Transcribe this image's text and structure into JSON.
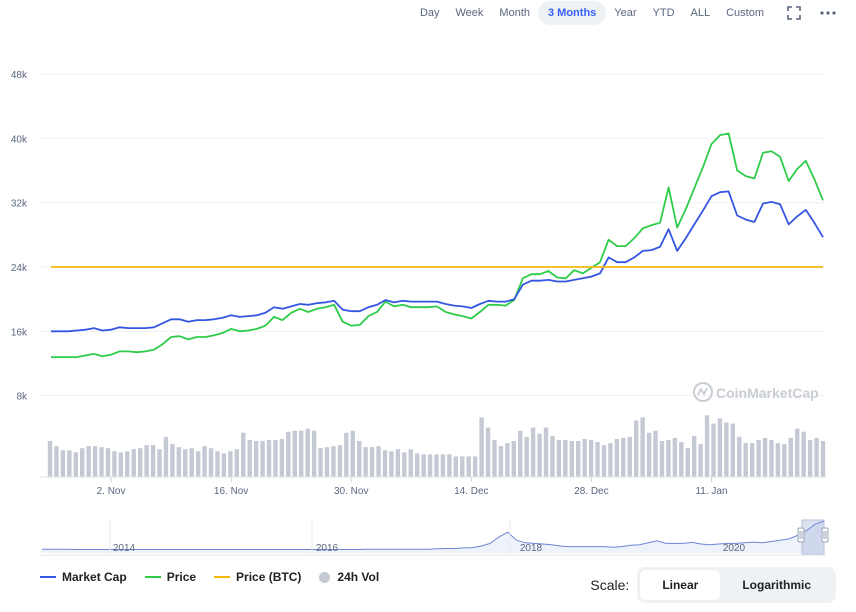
{
  "toolbar": {
    "ranges": [
      "Day",
      "Week",
      "Month",
      "3 Months",
      "Year",
      "YTD",
      "ALL",
      "Custom"
    ],
    "active_range": "3 Months"
  },
  "watermark": "CoinMarketCap",
  "colors": {
    "market_cap": "#3556e0",
    "price": "#2ecc49",
    "price_btc": "#f2b90c",
    "volume": "#c5c9d3",
    "accent": "#3861fb"
  },
  "legend": {
    "market_cap": "Market Cap",
    "price": "Price",
    "price_btc": "Price (BTC)",
    "volume": "24h Vol"
  },
  "scale": {
    "label": "Scale:",
    "linear": "Linear",
    "logarithmic": "Logarithmic",
    "active": "Linear"
  },
  "chart_data": {
    "type": "line",
    "y_ticks": [
      "8k",
      "16k",
      "24k",
      "32k",
      "40k",
      "48k"
    ],
    "y_tick_values": [
      8000,
      16000,
      24000,
      32000,
      40000,
      48000
    ],
    "ylim": [
      0,
      48000
    ],
    "x_ticks": [
      "2. Nov",
      "16. Nov",
      "30. Nov",
      "14. Dec",
      "28. Dec",
      "11. Jan"
    ],
    "x_tick_days": [
      7,
      21,
      35,
      49,
      63,
      77
    ],
    "grid": true,
    "series": [
      {
        "name": "Market Cap",
        "values": [
          16000,
          16000,
          16000,
          16100,
          16200,
          16400,
          16100,
          16200,
          16500,
          16400,
          16400,
          16400,
          16500,
          17000,
          17500,
          17500,
          17200,
          17400,
          17400,
          17500,
          17700,
          18000,
          17800,
          17900,
          18000,
          18300,
          19000,
          18800,
          19100,
          19400,
          19300,
          19500,
          19600,
          19800,
          18700,
          18500,
          18500,
          19000,
          19300,
          19900,
          19600,
          19800,
          19700,
          19700,
          19700,
          19700,
          19400,
          19200,
          19100,
          18900,
          19400,
          19800,
          19700,
          19700,
          20000,
          21800,
          22300,
          22300,
          22400,
          22200,
          22200,
          22400,
          22600,
          22800,
          23200,
          25200,
          24600,
          24600,
          25200,
          26000,
          26100,
          26500,
          28700,
          26000,
          27600,
          29300,
          31000,
          32800,
          33300,
          33400,
          30400,
          29900,
          29600,
          31900,
          32100,
          31800,
          29300,
          30300,
          31100,
          29500,
          27700
        ]
      },
      {
        "name": "Price",
        "values": [
          12800,
          12800,
          12800,
          12800,
          13000,
          13200,
          12900,
          13100,
          13500,
          13500,
          13400,
          13500,
          13700,
          14400,
          15300,
          15400,
          15000,
          15300,
          15300,
          15500,
          15800,
          16300,
          16000,
          16100,
          16300,
          16700,
          17800,
          17400,
          18300,
          18800,
          18400,
          18800,
          19000,
          19300,
          17200,
          16700,
          16800,
          17900,
          18400,
          19700,
          19100,
          19300,
          19000,
          19000,
          19000,
          19100,
          18400,
          18100,
          17900,
          17600,
          18400,
          19300,
          19300,
          19200,
          19900,
          22600,
          23100,
          23100,
          23500,
          22700,
          22600,
          23600,
          23200,
          23900,
          24600,
          27400,
          26600,
          26600,
          27600,
          28800,
          29200,
          29500,
          33900,
          28900,
          31200,
          33800,
          36400,
          39300,
          40400,
          40600,
          36000,
          35300,
          35000,
          38200,
          38400,
          37700,
          34700,
          36200,
          37200,
          34900,
          32300
        ]
      },
      {
        "name": "Price (BTC)",
        "values": [
          24000
        ]
      },
      {
        "name": "24h Vol",
        "values": [
          3500,
          3000,
          2600,
          2600,
          2400,
          2800,
          3000,
          3000,
          2900,
          2800,
          2500,
          2400,
          2500,
          2700,
          2800,
          3100,
          3100,
          2700,
          3900,
          3200,
          2900,
          2700,
          2800,
          2500,
          3000,
          2800,
          2500,
          2300,
          2500,
          2700,
          4300,
          3600,
          3500,
          3500,
          3600,
          3600,
          3700,
          4400,
          4500,
          4500,
          4700,
          4500,
          2800,
          2900,
          3000,
          3100,
          4300,
          4500,
          3500,
          2900,
          2900,
          3000,
          2600,
          2500,
          2700,
          2400,
          2700,
          2300,
          2200,
          2200,
          2200,
          2200,
          2200,
          2000,
          2000,
          2000,
          2000,
          5800,
          4800,
          3600,
          3000,
          3300,
          3500,
          4500,
          3900,
          4800,
          4200,
          4800,
          4000,
          3600,
          3600,
          3500,
          3500,
          3700,
          3600,
          3400,
          3100,
          3300,
          3700,
          3800,
          3900,
          5500,
          5800,
          4300,
          4500,
          3500,
          3600,
          3800,
          3400,
          2800,
          4000,
          3200,
          6000,
          5200,
          5700,
          5300,
          5200,
          3900,
          3300,
          3300,
          3600,
          3800,
          3600,
          3300,
          3200,
          3800,
          4700,
          4400,
          3600,
          3800,
          3500
        ]
      }
    ],
    "navigator": {
      "x_ticks": [
        "2014",
        "2016",
        "2018",
        "2020"
      ],
      "values": [
        0.12,
        0.12,
        0.12,
        0.12,
        0.11,
        0.11,
        0.11,
        0.11,
        0.11,
        0.11,
        0.11,
        0.11,
        0.11,
        0.11,
        0.11,
        0.11,
        0.11,
        0.11,
        0.11,
        0.11,
        0.11,
        0.11,
        0.11,
        0.11,
        0.11,
        0.11,
        0.11,
        0.11,
        0.11,
        0.11,
        0.11,
        0.11,
        0.11,
        0.11,
        0.11,
        0.11,
        0.11,
        0.12,
        0.12,
        0.12,
        0.12,
        0.12,
        0.12,
        0.12,
        0.12,
        0.13,
        0.14,
        0.14,
        0.16,
        0.17,
        0.22,
        0.3,
        0.5,
        0.65,
        0.4,
        0.32,
        0.3,
        0.28,
        0.26,
        0.22,
        0.2,
        0.2,
        0.2,
        0.2,
        0.2,
        0.18,
        0.2,
        0.24,
        0.26,
        0.32,
        0.38,
        0.3,
        0.3,
        0.3,
        0.33,
        0.28,
        0.26,
        0.28,
        0.3,
        0.3,
        0.32,
        0.34,
        0.32,
        0.36,
        0.4,
        0.44,
        0.55,
        0.7,
        0.9,
        1.0
      ]
    }
  }
}
